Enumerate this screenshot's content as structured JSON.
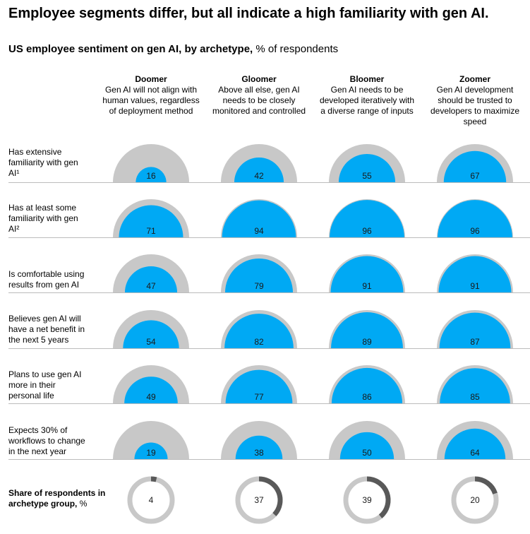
{
  "title": "Employee segments differ, but all indicate a high familiarity with gen AI.",
  "subtitle": {
    "bold": "US employee sentiment on gen AI, by archetype,",
    "normal": " % of respondents"
  },
  "colors": {
    "fill": "#00a9f4",
    "track": "#c8c8c8",
    "share": "#595959",
    "divider": "#bcbcbc"
  },
  "chart_data": {
    "type": "semicircle-matrix",
    "archetypes": [
      {
        "name": "Doomer",
        "description": "Gen AI will not align with human values, regardless of deployment method"
      },
      {
        "name": "Gloomer",
        "description": "Above all else, gen AI needs to be closely monitored and controlled"
      },
      {
        "name": "Bloomer",
        "description": "Gen AI needs to be developed iteratively with a diverse range of inputs"
      },
      {
        "name": "Zoomer",
        "description": "Gen AI development should be trusted to developers to maximize speed"
      }
    ],
    "rows": [
      {
        "label": "Has extensive familiarity with gen AI¹",
        "values": [
          16,
          42,
          55,
          67
        ]
      },
      {
        "label": "Has at least some familiarity with gen AI²",
        "values": [
          71,
          94,
          96,
          96
        ]
      },
      {
        "label": "Is comfortable using results from gen AI",
        "values": [
          47,
          79,
          91,
          91
        ]
      },
      {
        "label": "Believes gen AI will have a net benefit in the next 5 years",
        "values": [
          54,
          82,
          89,
          87
        ]
      },
      {
        "label": "Plans to use gen AI more in their personal life",
        "values": [
          49,
          77,
          86,
          85
        ]
      },
      {
        "label": "Expects 30% of workflows to change in the next year",
        "values": [
          19,
          38,
          50,
          64
        ]
      }
    ],
    "share": {
      "label": "Share of respondents in archetype group,",
      "unit": " %",
      "values": [
        4,
        37,
        39,
        20
      ]
    }
  }
}
